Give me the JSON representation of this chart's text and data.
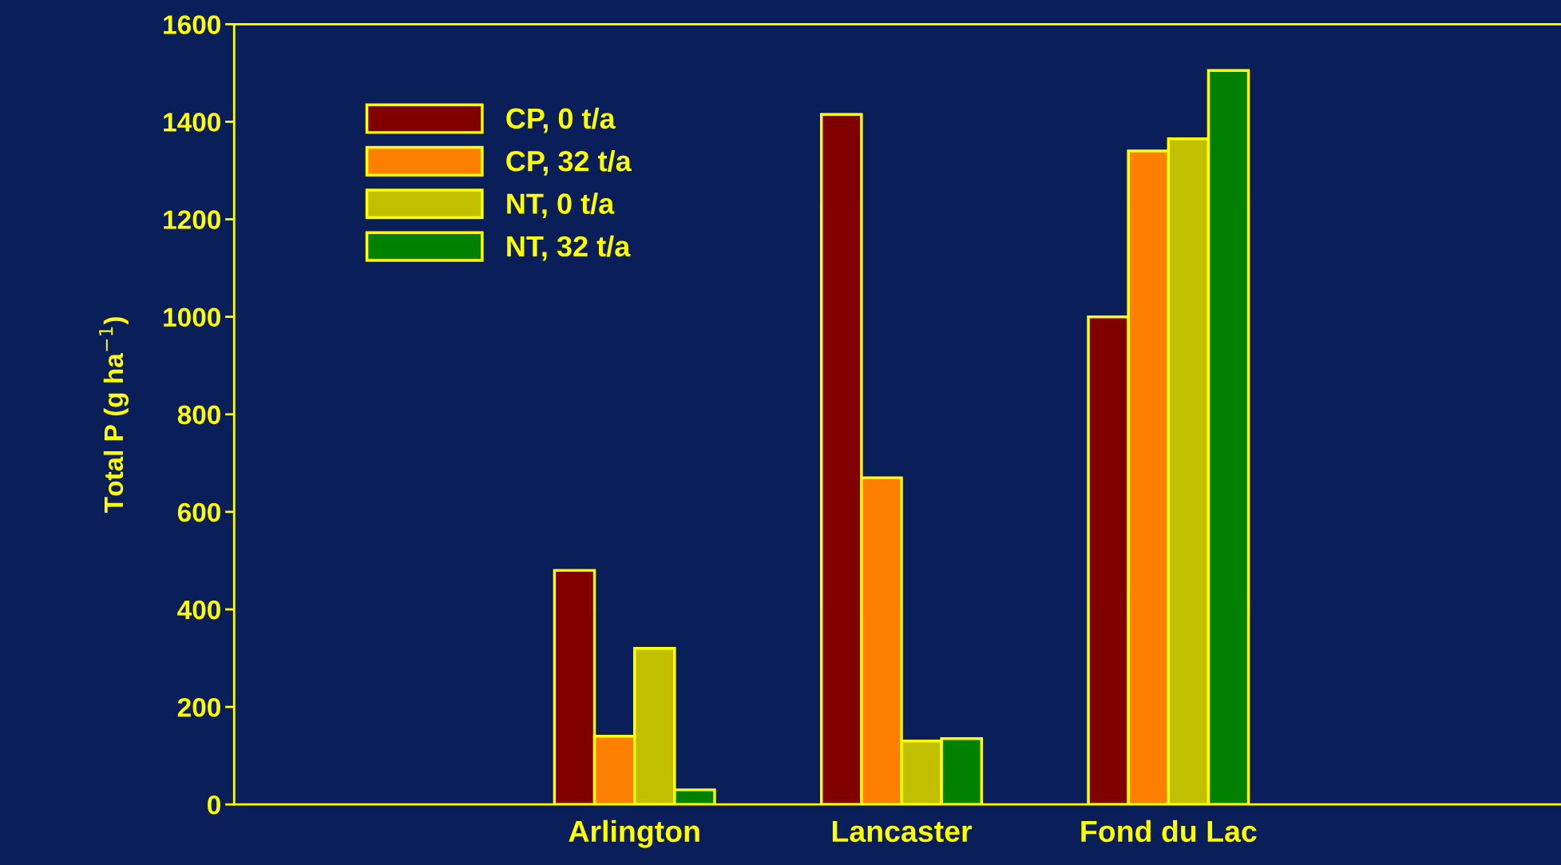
{
  "chart_data": {
    "type": "bar",
    "ylabel": "Total P (g ha$^{−1}$)",
    "categories": [
      null,
      "Arlington",
      "Lancaster",
      "Fond du Lac",
      null
    ],
    "series": [
      {
        "name": "CP, 0 t/a",
        "color": "#800000",
        "values": [
          null,
          480,
          1415,
          1000,
          null
        ]
      },
      {
        "name": "CP, 32 t/a",
        "color": "#ff8000",
        "values": [
          null,
          140,
          670,
          1340,
          null
        ]
      },
      {
        "name": "NT, 0 t/a",
        "color": "#c0c000",
        "values": [
          null,
          320,
          130,
          1365,
          null
        ]
      },
      {
        "name": "NT, 32 t/a",
        "color": "#008000",
        "values": [
          null,
          30,
          135,
          1505,
          null
        ]
      }
    ],
    "ylim": [
      0,
      1600
    ],
    "yticks": [
      0,
      200,
      400,
      600,
      800,
      1000,
      1200,
      1400,
      1600
    ],
    "legend": "top left",
    "grid": false
  }
}
